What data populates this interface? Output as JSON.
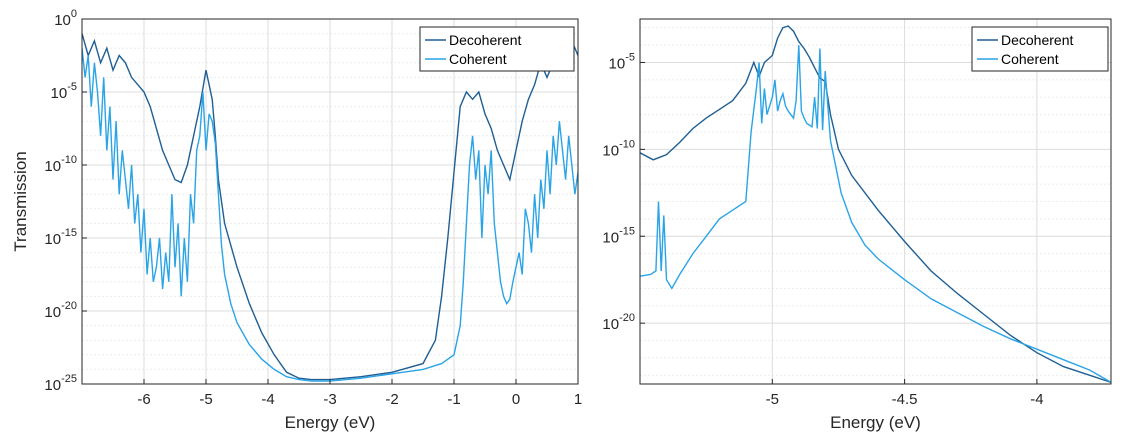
{
  "chart_data": [
    {
      "type": "line",
      "title": "",
      "xlabel": "Energy (eV)",
      "ylabel": "Transmission",
      "xscale": "linear",
      "yscale": "log",
      "xlim": [
        -7,
        1
      ],
      "ylim_exp": [
        -25,
        0
      ],
      "xticks": [
        -6,
        -5,
        -4,
        -3,
        -2,
        -1,
        0,
        1
      ],
      "xtick_labels": [
        "-6",
        "-5",
        "-4",
        "-3",
        "-2",
        "-1",
        "0",
        "1"
      ],
      "ytick_exps": [
        -25,
        -20,
        -15,
        -10,
        -5,
        0
      ],
      "ytick_labels": [
        {
          "base": "10",
          "exp": "-25"
        },
        {
          "base": "10",
          "exp": "-20"
        },
        {
          "base": "10",
          "exp": "-15"
        },
        {
          "base": "10",
          "exp": "-10"
        },
        {
          "base": "10",
          "exp": "-5"
        },
        {
          "base": "10",
          "exp": "0"
        }
      ],
      "grid": true,
      "legend_position": "top-right",
      "series": [
        {
          "name": "Decoherent",
          "color": "#1f5f94",
          "x": [
            -7.0,
            -6.9,
            -6.8,
            -6.7,
            -6.6,
            -6.5,
            -6.4,
            -6.3,
            -6.2,
            -6.1,
            -6.0,
            -5.9,
            -5.8,
            -5.7,
            -5.6,
            -5.5,
            -5.4,
            -5.3,
            -5.2,
            -5.1,
            -5.0,
            -4.95,
            -4.9,
            -4.85,
            -4.8,
            -4.7,
            -4.5,
            -4.3,
            -4.1,
            -3.9,
            -3.7,
            -3.5,
            -3.3,
            -3.0,
            -2.5,
            -2.0,
            -1.5,
            -1.3,
            -1.2,
            -1.1,
            -1.0,
            -0.9,
            -0.8,
            -0.7,
            -0.6,
            -0.5,
            -0.4,
            -0.3,
            -0.2,
            -0.1,
            0.0,
            0.1,
            0.2,
            0.3,
            0.4,
            0.5,
            0.6,
            0.7,
            0.8,
            0.9,
            1.0
          ],
          "y_exp": [
            -1.0,
            -2.5,
            -1.5,
            -3.0,
            -2.0,
            -3.5,
            -2.5,
            -3.0,
            -4.0,
            -4.5,
            -5.0,
            -6.0,
            -7.5,
            -9.0,
            -10.0,
            -11.0,
            -11.2,
            -10.0,
            -8.0,
            -6.0,
            -3.5,
            -4.5,
            -5.5,
            -8.0,
            -11.0,
            -14.0,
            -17.0,
            -19.5,
            -21.5,
            -23.0,
            -24.2,
            -24.6,
            -24.7,
            -24.7,
            -24.5,
            -24.2,
            -23.6,
            -22.0,
            -19.0,
            -15.0,
            -10.5,
            -6.0,
            -5.0,
            -5.5,
            -5.0,
            -6.5,
            -7.5,
            -9.0,
            -10.0,
            -11.0,
            -9.0,
            -7.0,
            -5.5,
            -4.5,
            -3.0,
            -4.0,
            -3.0,
            -2.0,
            -3.5,
            -1.5,
            -2.5
          ]
        },
        {
          "name": "Coherent",
          "color": "#2aa4e6",
          "x": [
            -7.0,
            -6.95,
            -6.9,
            -6.85,
            -6.8,
            -6.75,
            -6.7,
            -6.65,
            -6.6,
            -6.55,
            -6.5,
            -6.45,
            -6.4,
            -6.35,
            -6.3,
            -6.25,
            -6.2,
            -6.15,
            -6.1,
            -6.05,
            -6.0,
            -5.95,
            -5.9,
            -5.85,
            -5.8,
            -5.75,
            -5.7,
            -5.65,
            -5.6,
            -5.55,
            -5.5,
            -5.45,
            -5.4,
            -5.35,
            -5.3,
            -5.25,
            -5.2,
            -5.15,
            -5.1,
            -5.05,
            -5.0,
            -4.95,
            -4.9,
            -4.85,
            -4.8,
            -4.75,
            -4.7,
            -4.6,
            -4.5,
            -4.3,
            -4.1,
            -3.9,
            -3.7,
            -3.5,
            -3.3,
            -3.0,
            -2.5,
            -2.0,
            -1.5,
            -1.2,
            -1.0,
            -0.9,
            -0.85,
            -0.8,
            -0.75,
            -0.7,
            -0.65,
            -0.6,
            -0.55,
            -0.5,
            -0.45,
            -0.4,
            -0.35,
            -0.3,
            -0.25,
            -0.2,
            -0.15,
            -0.1,
            -0.05,
            0.0,
            0.05,
            0.1,
            0.15,
            0.2,
            0.25,
            0.3,
            0.35,
            0.4,
            0.45,
            0.5,
            0.55,
            0.6,
            0.65,
            0.7,
            0.75,
            0.8,
            0.85,
            0.9,
            0.95,
            1.0
          ],
          "y_exp": [
            -2.0,
            -4.0,
            -2.5,
            -6.0,
            -3.0,
            -5.0,
            -8.0,
            -4.0,
            -9.0,
            -6.0,
            -11.0,
            -7.0,
            -12.0,
            -9.0,
            -11.0,
            -13.0,
            -10.0,
            -14.0,
            -12.0,
            -16.0,
            -13.0,
            -17.5,
            -15.0,
            -18.0,
            -17.0,
            -15.0,
            -18.5,
            -16.0,
            -18.0,
            -12.0,
            -17.0,
            -14.0,
            -19.0,
            -15.0,
            -18.0,
            -12.0,
            -14.0,
            -9.0,
            -8.0,
            -5.0,
            -9.0,
            -6.5,
            -7.0,
            -8.5,
            -12.0,
            -15.5,
            -17.5,
            -19.5,
            -20.8,
            -22.3,
            -23.3,
            -24.0,
            -24.5,
            -24.7,
            -24.8,
            -24.8,
            -24.6,
            -24.3,
            -24.0,
            -23.6,
            -23.0,
            -21.0,
            -18.0,
            -14.0,
            -10.0,
            -8.0,
            -11.0,
            -9.0,
            -15.0,
            -10.0,
            -12.0,
            -9.0,
            -14.0,
            -16.0,
            -18.0,
            -19.0,
            -19.5,
            -19.2,
            -18.0,
            -17.0,
            -16.0,
            -17.5,
            -13.0,
            -14.0,
            -16.0,
            -12.0,
            -15.0,
            -11.0,
            -13.0,
            -9.0,
            -12.0,
            -8.0,
            -10.0,
            -7.0,
            -9.0,
            -11.0,
            -8.0,
            -10.0,
            -12.0,
            -10.5
          ]
        }
      ]
    },
    {
      "type": "line",
      "title": "",
      "xlabel": "Energy (eV)",
      "ylabel": "",
      "xscale": "linear",
      "yscale": "log",
      "xlim": [
        -5.5,
        -3.72
      ],
      "ylim_exp": [
        -23.5,
        -2.5
      ],
      "xticks": [
        -5,
        -4.5,
        -4
      ],
      "xtick_labels": [
        "-5",
        "-4.5",
        "-4"
      ],
      "ytick_exps": [
        -20,
        -15,
        -10,
        -5
      ],
      "ytick_labels": [
        {
          "base": "10",
          "exp": "-20"
        },
        {
          "base": "10",
          "exp": "-15"
        },
        {
          "base": "10",
          "exp": "-10"
        },
        {
          "base": "10",
          "exp": "-5"
        }
      ],
      "grid": true,
      "legend_position": "top-right",
      "series": [
        {
          "name": "Decoherent",
          "color": "#1f5f94",
          "x": [
            -5.5,
            -5.45,
            -5.4,
            -5.35,
            -5.3,
            -5.25,
            -5.2,
            -5.15,
            -5.1,
            -5.07,
            -5.05,
            -5.03,
            -5.0,
            -4.98,
            -4.96,
            -4.94,
            -4.92,
            -4.9,
            -4.88,
            -4.86,
            -4.85,
            -4.84,
            -4.83,
            -4.82,
            -4.8,
            -4.78,
            -4.75,
            -4.7,
            -4.6,
            -4.5,
            -4.4,
            -4.3,
            -4.2,
            -4.1,
            -4.0,
            -3.9,
            -3.8,
            -3.72
          ],
          "y_exp": [
            -10.2,
            -10.6,
            -10.3,
            -9.6,
            -8.8,
            -8.2,
            -7.7,
            -7.2,
            -6.2,
            -5.0,
            -5.8,
            -5.0,
            -4.6,
            -3.6,
            -3.0,
            -2.9,
            -3.2,
            -3.8,
            -4.2,
            -4.7,
            -5.0,
            -5.3,
            -5.6,
            -5.9,
            -6.1,
            -8.0,
            -10.0,
            -11.5,
            -13.5,
            -15.3,
            -17.0,
            -18.3,
            -19.5,
            -20.7,
            -21.7,
            -22.5,
            -23.0,
            -23.4
          ]
        },
        {
          "name": "Coherent",
          "color": "#2aa4e6",
          "x": [
            -5.5,
            -5.46,
            -5.44,
            -5.43,
            -5.42,
            -5.41,
            -5.4,
            -5.38,
            -5.35,
            -5.3,
            -5.25,
            -5.2,
            -5.15,
            -5.1,
            -5.08,
            -5.06,
            -5.05,
            -5.04,
            -5.03,
            -5.02,
            -5.0,
            -4.99,
            -4.98,
            -4.97,
            -4.96,
            -4.95,
            -4.94,
            -4.93,
            -4.92,
            -4.91,
            -4.9,
            -4.89,
            -4.88,
            -4.87,
            -4.86,
            -4.85,
            -4.84,
            -4.83,
            -4.82,
            -4.81,
            -4.8,
            -4.78,
            -4.76,
            -4.74,
            -4.7,
            -4.65,
            -4.6,
            -4.5,
            -4.4,
            -4.3,
            -4.2,
            -4.1,
            -4.0,
            -3.9,
            -3.8,
            -3.72
          ],
          "y_exp": [
            -17.3,
            -17.2,
            -17.0,
            -13.0,
            -17.0,
            -13.8,
            -17.5,
            -18.0,
            -17.2,
            -16.0,
            -15.0,
            -14.0,
            -13.5,
            -13.0,
            -9.0,
            -6.5,
            -5.0,
            -8.5,
            -6.5,
            -8.0,
            -7.0,
            -6.0,
            -7.8,
            -7.2,
            -6.8,
            -7.5,
            -7.8,
            -8.0,
            -8.2,
            -7.2,
            -4.0,
            -7.8,
            -8.2,
            -8.5,
            -8.6,
            -8.7,
            -7.0,
            -8.8,
            -4.2,
            -8.9,
            -5.5,
            -9.5,
            -11.0,
            -12.5,
            -14.2,
            -15.5,
            -16.3,
            -17.5,
            -18.6,
            -19.4,
            -20.2,
            -20.9,
            -21.5,
            -22.1,
            -22.7,
            -23.4
          ]
        }
      ]
    }
  ]
}
